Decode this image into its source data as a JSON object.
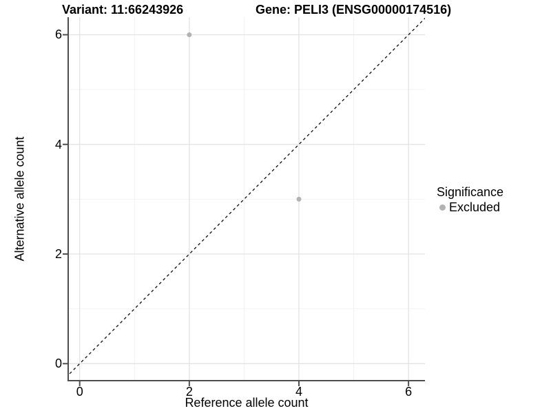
{
  "titles": {
    "left": "Variant: 11:66243926",
    "right": "Gene: PELI3 (ENSG00000174516)"
  },
  "chart_data": {
    "type": "scatter",
    "title": "Variant: 11:66243926 — Gene: PELI3 (ENSG00000174516)",
    "xlabel": "Reference allele count",
    "ylabel": "Alternative allele count",
    "xlim": [
      -0.21,
      6.3
    ],
    "ylim": [
      -0.31,
      6.32
    ],
    "x_ticks": [
      0,
      2,
      4,
      6
    ],
    "y_ticks": [
      0,
      2,
      4,
      6
    ],
    "x_minor_ticks": [
      1,
      3,
      5
    ],
    "y_minor_ticks": [
      1,
      3,
      5
    ],
    "grid": true,
    "series": [
      {
        "name": "Excluded",
        "color": "#b3b3b3",
        "points": [
          {
            "x": 2,
            "y": 6
          },
          {
            "x": 4,
            "y": 3
          }
        ]
      }
    ],
    "reference_line": {
      "type": "identity",
      "slope": 1,
      "intercept": 0,
      "style": "dashed",
      "color": "#1a1a1a"
    },
    "legend": {
      "title": "Significance",
      "position": "right",
      "entries": [
        {
          "label": "Excluded",
          "color": "#b3b3b3"
        }
      ]
    },
    "colors": {
      "background": "#ffffff",
      "axis_line": "#4d4d4d",
      "major_grid": "#e3e3e3",
      "minor_grid": "#f2f2f2"
    }
  }
}
